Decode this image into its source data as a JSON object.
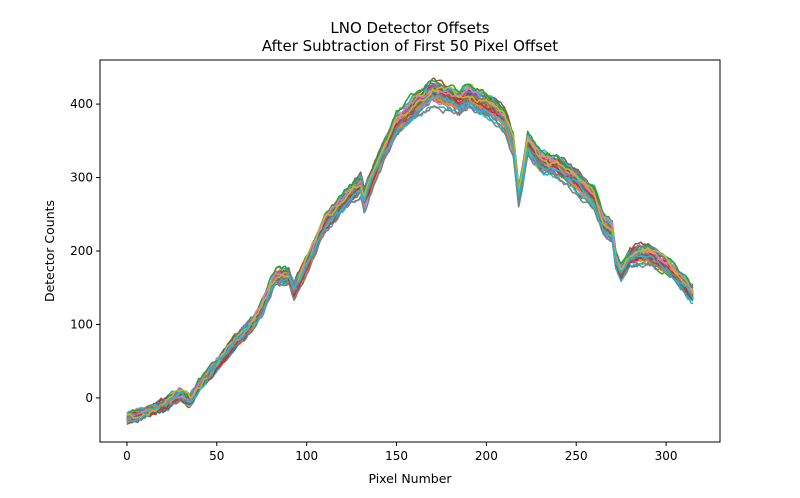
{
  "chart_data": {
    "type": "line",
    "title": "LNO Detector Offsets",
    "subtitle": "After Subtraction of First 50 Pixel Offset",
    "xlabel": "Pixel Number",
    "ylabel": "Detector Counts",
    "xlim": [
      -15,
      330
    ],
    "ylim": [
      -60,
      460
    ],
    "xticks": [
      0,
      50,
      100,
      150,
      200,
      250,
      300
    ],
    "yticks": [
      0,
      100,
      200,
      300,
      400
    ],
    "grid": false,
    "legend": "none",
    "x_start": 0,
    "x_end": 315,
    "profile_anchors": [
      [
        0,
        -28
      ],
      [
        10,
        -20
      ],
      [
        20,
        -10
      ],
      [
        30,
        5
      ],
      [
        35,
        -5
      ],
      [
        40,
        15
      ],
      [
        50,
        45
      ],
      [
        60,
        75
      ],
      [
        70,
        100
      ],
      [
        75,
        120
      ],
      [
        80,
        150
      ],
      [
        83,
        165
      ],
      [
        90,
        165
      ],
      [
        93,
        145
      ],
      [
        100,
        180
      ],
      [
        110,
        235
      ],
      [
        120,
        265
      ],
      [
        130,
        290
      ],
      [
        132,
        270
      ],
      [
        140,
        320
      ],
      [
        150,
        370
      ],
      [
        160,
        395
      ],
      [
        170,
        415
      ],
      [
        180,
        408
      ],
      [
        185,
        400
      ],
      [
        190,
        410
      ],
      [
        200,
        398
      ],
      [
        210,
        380
      ],
      [
        215,
        345
      ],
      [
        218,
        275
      ],
      [
        220,
        300
      ],
      [
        223,
        345
      ],
      [
        230,
        320
      ],
      [
        240,
        315
      ],
      [
        250,
        295
      ],
      [
        260,
        270
      ],
      [
        265,
        235
      ],
      [
        270,
        225
      ],
      [
        272,
        185
      ],
      [
        275,
        170
      ],
      [
        280,
        190
      ],
      [
        285,
        195
      ],
      [
        290,
        195
      ],
      [
        300,
        180
      ],
      [
        310,
        155
      ],
      [
        315,
        140
      ]
    ],
    "series_count": 40,
    "series_colors": [
      "#1f77b4",
      "#ff7f0e",
      "#2ca02c",
      "#d62728",
      "#9467bd",
      "#8c564b",
      "#e377c2",
      "#7f7f7f",
      "#bcbd22",
      "#17becf"
    ]
  }
}
